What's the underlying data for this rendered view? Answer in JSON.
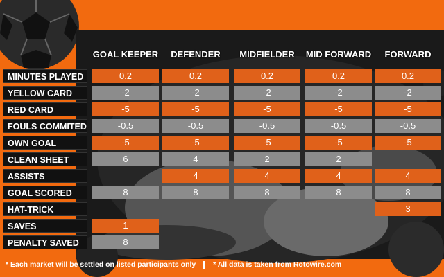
{
  "columns": [
    "GOAL KEEPER",
    "DEFENDER",
    "MIDFIELDER",
    "MID FORWARD",
    "FORWARD"
  ],
  "rows": [
    {
      "label": "MINUTES PLAYED",
      "values": [
        "0.2",
        "0.2",
        "0.2",
        "0.2",
        "0.2"
      ],
      "style": "orange"
    },
    {
      "label": "YELLOW CARD",
      "values": [
        "-2",
        "-2",
        "-2",
        "-2",
        "-2"
      ],
      "style": "grey"
    },
    {
      "label": "RED CARD",
      "values": [
        "-5",
        "-5",
        "-5",
        "-5",
        "-5"
      ],
      "style": "orange"
    },
    {
      "label": "FOULS COMMITED",
      "values": [
        "-0.5",
        "-0.5",
        "-0.5",
        "-0.5",
        "-0.5"
      ],
      "style": "grey"
    },
    {
      "label": "OWN GOAL",
      "values": [
        "-5",
        "-5",
        "-5",
        "-5",
        "-5"
      ],
      "style": "orange"
    },
    {
      "label": "CLEAN SHEET",
      "values": [
        "6",
        "4",
        "2",
        "2",
        ""
      ],
      "style": "grey"
    },
    {
      "label": "ASSISTS",
      "values": [
        "",
        "4",
        "4",
        "4",
        "4"
      ],
      "style": "orange"
    },
    {
      "label": "GOAL SCORED",
      "values": [
        "8",
        "8",
        "8",
        "8",
        "8"
      ],
      "style": "grey"
    },
    {
      "label": "HAT-TRICK",
      "values": [
        "",
        "",
        "",
        "",
        "3"
      ],
      "style": "orange"
    },
    {
      "label": "SAVES",
      "values": [
        "1",
        "",
        "",
        "",
        ""
      ],
      "style": "orange"
    },
    {
      "label": "PENALTY SAVED",
      "values": [
        "8",
        "",
        "",
        "",
        ""
      ],
      "style": "grey"
    }
  ],
  "footer": {
    "note1": "* Each market will be settled on listed participants only",
    "note2": "* All data is taken from Rotowire.com"
  },
  "colors": {
    "background": "#f26a0f",
    "orange_cell": "#e0611a",
    "grey_cell": "#8c8c8c",
    "label_bg": "#111111"
  }
}
